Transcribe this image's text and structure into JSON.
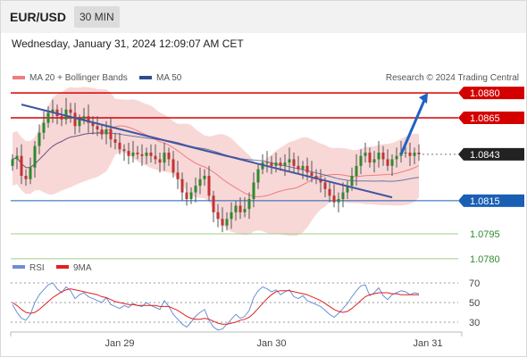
{
  "header": {
    "symbol": "EUR/USD",
    "timeframe": "30 MIN",
    "datetime": "Wednesday, January 31, 2024 12:09:07 AM CET",
    "credit": "Research © 2024 Trading Central"
  },
  "colors": {
    "bollinger_fill": "#f6c9c9",
    "ma20": "#ef7d7d",
    "ma50": "#2e4d8f",
    "resistance": "#d40000",
    "support_blue": "#1a5fb4",
    "support_green": "#2e8b2e",
    "current": "#222222",
    "trendline": "#3f569f",
    "arrow": "#1f62c4",
    "rsi": "#6b8fd6",
    "rsi_ma": "#e02020",
    "up_candle": "#2d8a2d",
    "down_candle": "#c43232"
  },
  "chart_data": [
    {
      "type": "candlestick",
      "title": "EUR/USD",
      "legend": [
        {
          "name": "MA 20 + Bollinger Bands",
          "color": "#ef7d7d"
        },
        {
          "name": "MA 50",
          "color": "#2e4d8f"
        }
      ],
      "x_tick_labels": [
        "Jan 29",
        "Jan 30",
        "Jan 31"
      ],
      "ylim": [
        1.0774,
        1.0886
      ],
      "levels": [
        {
          "value": 1.088,
          "label": "1.0880",
          "kind": "resistance"
        },
        {
          "value": 1.0865,
          "label": "1.0865",
          "kind": "resistance"
        },
        {
          "value": 1.0843,
          "label": "1.0843",
          "kind": "current"
        },
        {
          "value": 1.0815,
          "label": "1.0815",
          "kind": "support-main"
        },
        {
          "value": 1.0795,
          "label": "1.0795",
          "kind": "support"
        },
        {
          "value": 1.078,
          "label": "1.0780",
          "kind": "support"
        }
      ],
      "trendline": {
        "from": [
          2,
          1.0873
        ],
        "to": [
          85,
          1.0817
        ]
      },
      "forecast_arrow": {
        "from": [
          87,
          1.0843
        ],
        "to": [
          93,
          1.088
        ]
      },
      "closes": [
        1.084,
        1.0842,
        1.083,
        1.0828,
        1.0835,
        1.0848,
        1.0856,
        1.0862,
        1.0868,
        1.087,
        1.0866,
        1.0864,
        1.087,
        1.0868,
        1.086,
        1.0864,
        1.0866,
        1.0862,
        1.086,
        1.0858,
        1.0855,
        1.0858,
        1.0852,
        1.085,
        1.0846,
        1.0845,
        1.0842,
        1.0844,
        1.0843,
        1.0842,
        1.0844,
        1.0842,
        1.084,
        1.0838,
        1.0844,
        1.084,
        1.0832,
        1.0828,
        1.082,
        1.0816,
        1.082,
        1.0824,
        1.0828,
        1.083,
        1.0818,
        1.0808,
        1.0804,
        1.08,
        1.0804,
        1.0808,
        1.0812,
        1.0808,
        1.081,
        1.0816,
        1.0826,
        1.0834,
        1.0838,
        1.0838,
        1.0836,
        1.0838,
        1.0836,
        1.0838,
        1.084,
        1.0836,
        1.0834,
        1.0836,
        1.0832,
        1.083,
        1.0828,
        1.0826,
        1.0822,
        1.0818,
        1.0814,
        1.0816,
        1.082,
        1.0824,
        1.083,
        1.0836,
        1.0842,
        1.0844,
        1.0838,
        1.084,
        1.0844,
        1.084,
        1.0836,
        1.084,
        1.0842,
        1.0844,
        1.0844,
        1.0842,
        1.0844,
        1.0843
      ]
    },
    {
      "type": "line",
      "title": "RSI",
      "legend": [
        {
          "name": "RSI",
          "color": "#6b8fd6"
        },
        {
          "name": "9MA",
          "color": "#e02020"
        }
      ],
      "yticks": [
        30,
        50,
        70
      ],
      "ylim": [
        20,
        80
      ],
      "series": [
        {
          "name": "RSI",
          "values": [
            48,
            40,
            34,
            32,
            38,
            50,
            58,
            63,
            68,
            70,
            64,
            60,
            66,
            62,
            54,
            58,
            60,
            56,
            54,
            52,
            50,
            55,
            48,
            46,
            44,
            47,
            45,
            49,
            47,
            46,
            50,
            47,
            45,
            43,
            52,
            46,
            38,
            33,
            28,
            25,
            30,
            36,
            40,
            43,
            32,
            25,
            22,
            23,
            28,
            33,
            38,
            34,
            36,
            42,
            55,
            62,
            66,
            64,
            61,
            63,
            58,
            61,
            63,
            56,
            54,
            57,
            52,
            50,
            48,
            46,
            42,
            38,
            35,
            39,
            44,
            49,
            56,
            62,
            67,
            68,
            57,
            60,
            65,
            57,
            53,
            58,
            60,
            62,
            61,
            58,
            60,
            59
          ]
        },
        {
          "name": "9MA",
          "values": [
            50,
            47,
            43,
            40,
            39,
            40,
            43,
            47,
            51,
            55,
            58,
            61,
            63,
            64,
            63,
            62,
            61,
            60,
            59,
            58,
            56,
            55,
            53,
            51,
            50,
            49,
            48,
            48,
            47,
            47,
            47,
            47,
            47,
            46,
            46,
            46,
            44,
            42,
            39,
            36,
            34,
            33,
            33,
            34,
            33,
            31,
            29,
            28,
            28,
            29,
            30,
            32,
            33,
            35,
            39,
            44,
            49,
            54,
            58,
            61,
            62,
            62,
            62,
            61,
            60,
            59,
            58,
            56,
            54,
            52,
            49,
            46,
            43,
            41,
            40,
            41,
            44,
            48,
            52,
            56,
            58,
            59,
            60,
            60,
            60,
            59,
            59,
            58,
            58,
            58,
            58,
            58
          ]
        }
      ]
    }
  ]
}
